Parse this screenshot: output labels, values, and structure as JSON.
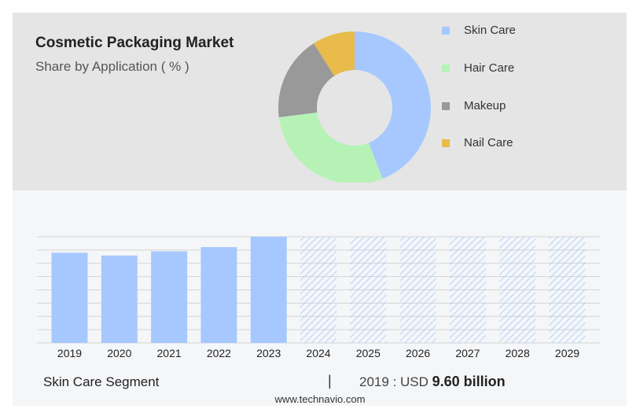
{
  "header": {
    "title": "Cosmetic Packaging Market",
    "subtitle": "Share by Application ( % )"
  },
  "legend": [
    {
      "label": "Skin Care",
      "color": "#a6c8ff"
    },
    {
      "label": "Hair Care",
      "color": "#b6f2b6"
    },
    {
      "label": "Makeup",
      "color": "#999999"
    },
    {
      "label": "Nail Care",
      "color": "#e8bb4a"
    }
  ],
  "chart_data": [
    {
      "type": "pie",
      "variant": "donut",
      "title": "Share by Application ( % )",
      "labels": [
        "Skin Care",
        "Hair Care",
        "Makeup",
        "Nail Care"
      ],
      "values": [
        44,
        29,
        18,
        9
      ],
      "colors": [
        "#a6c8ff",
        "#b6f2b6",
        "#999999",
        "#e8bb4a"
      ]
    },
    {
      "type": "bar",
      "categories": [
        "2019",
        "2020",
        "2021",
        "2022",
        "2023",
        "2024",
        "2025",
        "2026",
        "2027",
        "2028",
        "2029"
      ],
      "values": [
        9.6,
        9.3,
        9.75,
        10.2,
        11.3,
        null,
        null,
        null,
        null,
        null,
        null
      ],
      "forecast_categories": [
        "2024",
        "2025",
        "2026",
        "2027",
        "2028",
        "2029"
      ],
      "ylim": [
        0,
        11.3
      ],
      "grid": true,
      "bar_color": "#a6c8ff",
      "forecast_color": "#a6c8ff"
    }
  ],
  "footer": {
    "segment": "Skin Care Segment",
    "separator": "|",
    "year_prefix": "2019 : USD",
    "value": "9.60 billion"
  },
  "source": "www.technavio.com"
}
